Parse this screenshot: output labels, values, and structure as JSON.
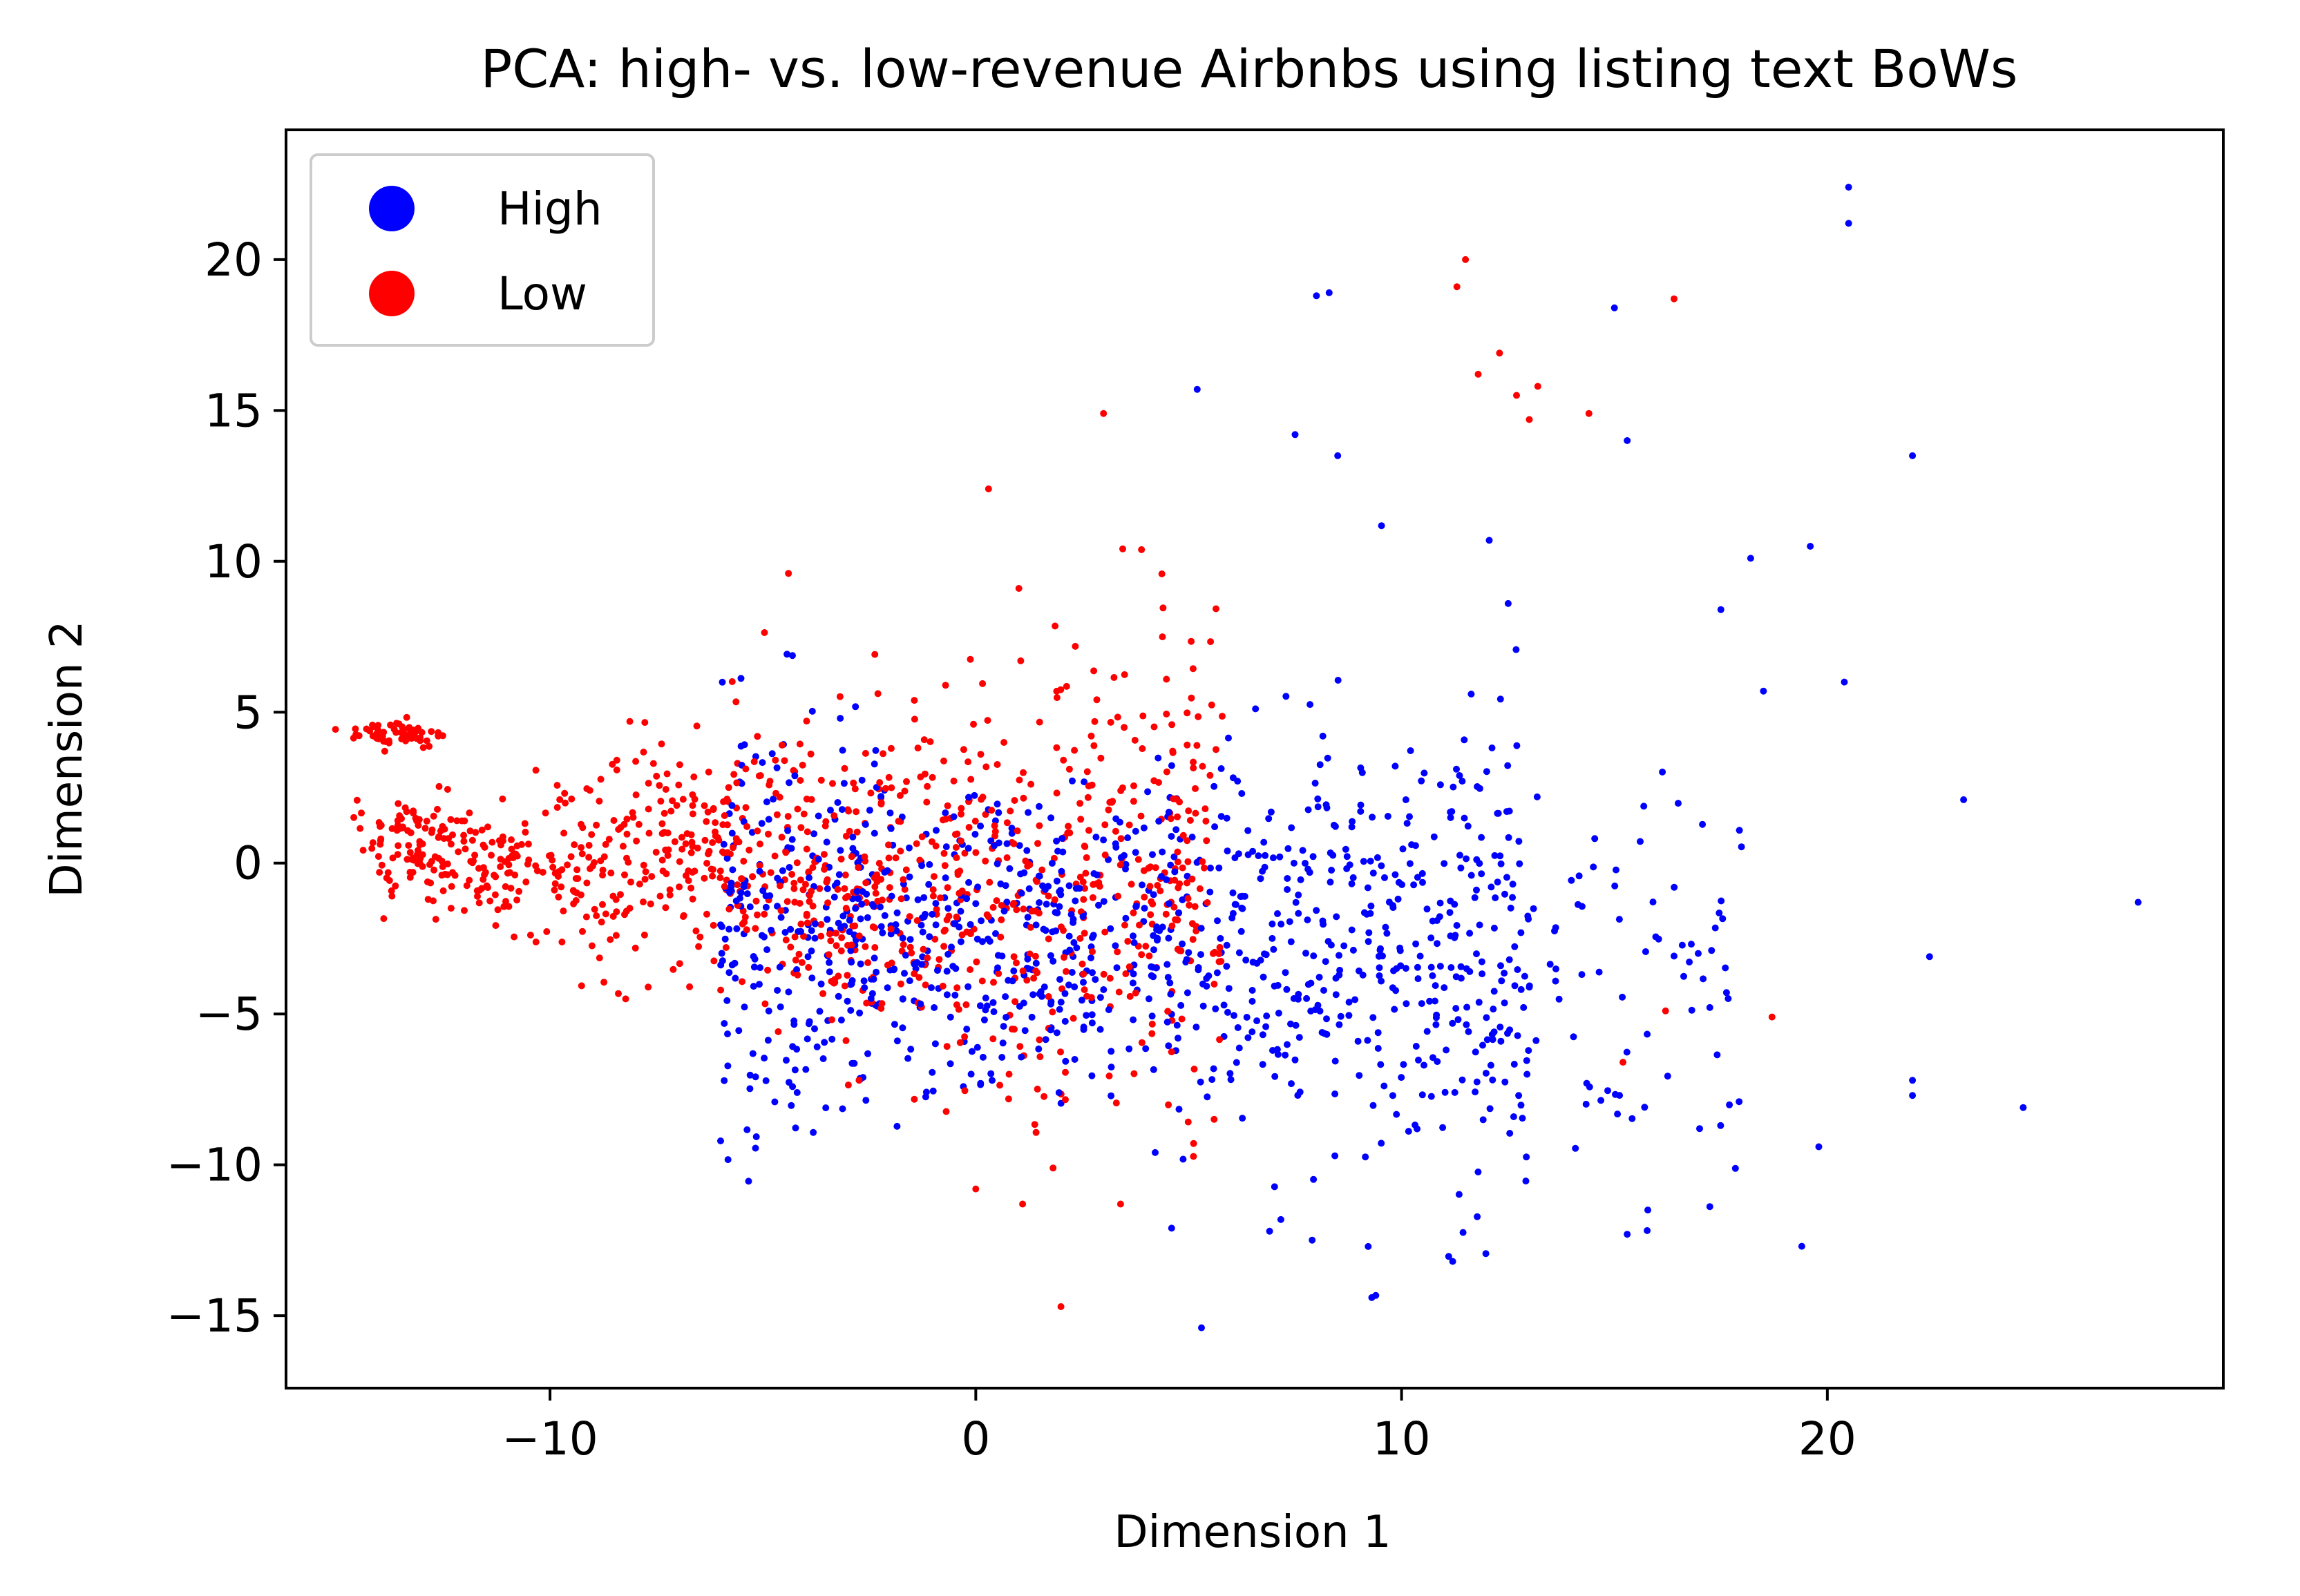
{
  "chart_data": {
    "type": "scatter",
    "title": "PCA: high- vs. low-revenue Airbnbs using listing text BoWs",
    "xlabel": "Dimension 1",
    "ylabel": "Dimension 2",
    "xlim": [
      -16.2,
      29.3
    ],
    "ylim": [
      -17.4,
      24.3
    ],
    "xticks": [
      -10,
      0,
      10,
      20
    ],
    "yticks": [
      -15,
      -10,
      -5,
      0,
      5,
      10,
      15,
      20
    ],
    "xtick_labels": [
      "−10",
      "0",
      "10",
      "20"
    ],
    "ytick_labels": [
      "−15",
      "−10",
      "−5",
      "0",
      "5",
      "10",
      "15",
      "20"
    ],
    "grid": false,
    "legend_position": "upper-left",
    "series": [
      {
        "name": "High",
        "color": "#0000ff",
        "points_description": "approximately 1100 points concentrated roughly x -5 to 10, y -10 to 5, with sparse outliers extending to x 27",
        "outliers": [
          [
            20.5,
            22.4
          ],
          [
            20.5,
            21.2
          ],
          [
            8.3,
            18.9
          ],
          [
            8.0,
            18.8
          ],
          [
            15.0,
            18.4
          ],
          [
            5.2,
            15.7
          ],
          [
            7.5,
            14.2
          ],
          [
            15.3,
            14.0
          ],
          [
            22.0,
            13.5
          ],
          [
            8.5,
            13.5
          ],
          [
            19.6,
            10.5
          ],
          [
            18.2,
            10.1
          ],
          [
            17.5,
            8.4
          ],
          [
            20.4,
            6.0
          ],
          [
            18.5,
            5.7
          ],
          [
            23.2,
            2.1
          ],
          [
            27.3,
            -1.3
          ],
          [
            22.4,
            -3.1
          ],
          [
            22.0,
            -7.2
          ],
          [
            22.0,
            -7.7
          ],
          [
            24.6,
            -8.1
          ],
          [
            19.8,
            -9.4
          ],
          [
            19.4,
            -12.7
          ],
          [
            11.2,
            -13.2
          ],
          [
            9.3,
            -14.4
          ],
          [
            5.3,
            -15.4
          ],
          [
            6.9,
            -12.2
          ],
          [
            4.6,
            -12.1
          ],
          [
            15.3,
            -12.3
          ],
          [
            17.0,
            -8.8
          ]
        ]
      },
      {
        "name": "Low",
        "color": "#ff0000",
        "points_description": "approximately 1100 points concentrated roughly x -14 to 5, y -8 to 8, with a dense cluster near x -13.5, y 4.4",
        "outliers": [
          [
            11.5,
            20.0
          ],
          [
            11.3,
            19.1
          ],
          [
            16.4,
            18.7
          ],
          [
            12.3,
            16.9
          ],
          [
            11.8,
            16.2
          ],
          [
            13.2,
            15.8
          ],
          [
            12.7,
            15.5
          ],
          [
            14.4,
            14.9
          ],
          [
            3.0,
            14.9
          ],
          [
            13.0,
            14.7
          ],
          [
            0.3,
            12.4
          ],
          [
            -4.4,
            9.6
          ],
          [
            2.0,
            -14.7
          ],
          [
            1.1,
            -11.3
          ],
          [
            0.0,
            -10.8
          ],
          [
            3.4,
            -11.3
          ],
          [
            18.7,
            -5.1
          ],
          [
            16.2,
            -4.9
          ],
          [
            15.2,
            -6.6
          ]
        ]
      }
    ]
  },
  "legend": {
    "items": [
      {
        "label": "High",
        "color": "#0000ff"
      },
      {
        "label": "Low",
        "color": "#ff0000"
      }
    ]
  }
}
